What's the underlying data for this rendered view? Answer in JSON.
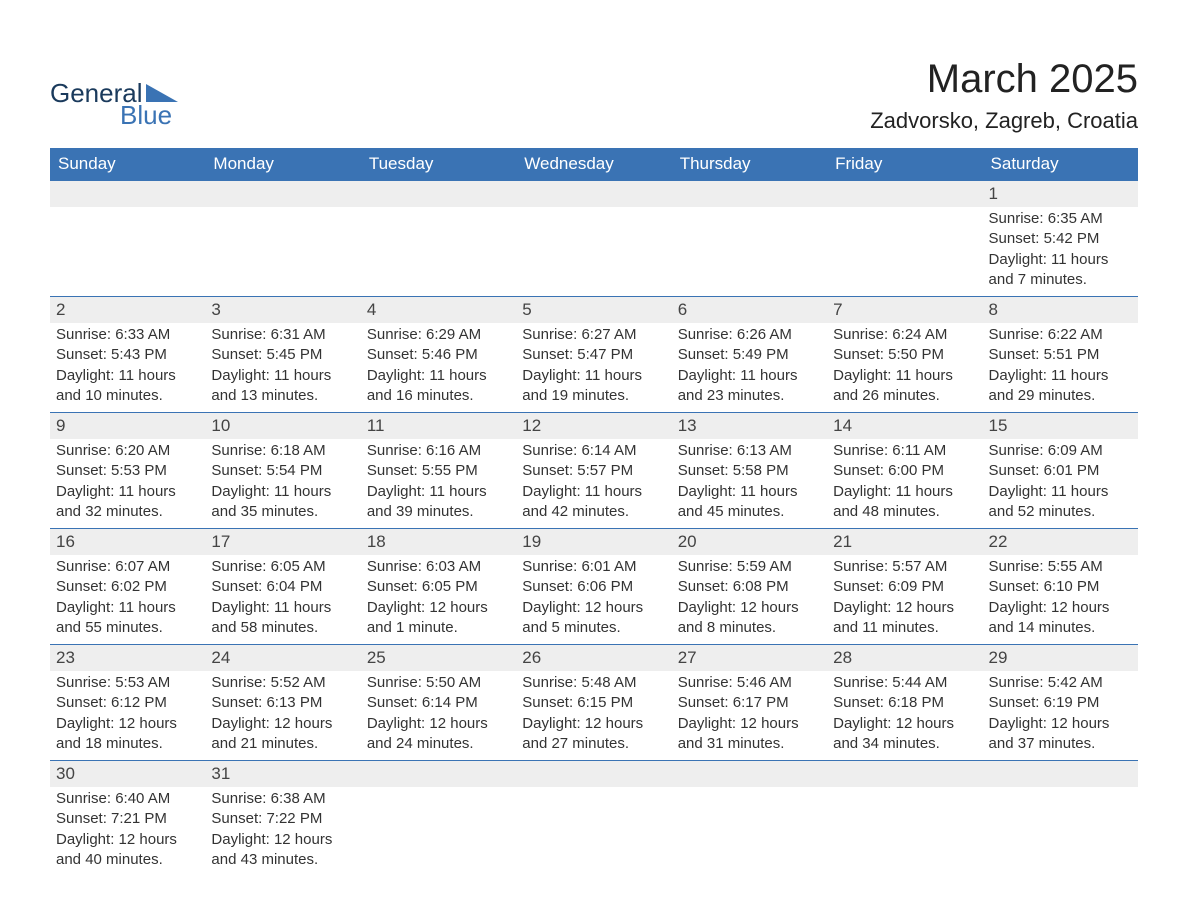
{
  "header": {
    "brand_word1": "General",
    "brand_word2": "Blue",
    "month_title": "March 2025",
    "location": "Zadvorsko, Zagreb, Croatia"
  },
  "colors": {
    "header_bg": "#3a73b4",
    "header_text": "#ffffff",
    "daynum_bg": "#eeeeee",
    "row_border": "#3a73b4",
    "body_text": "#333333",
    "brand_dark": "#1a3a5c",
    "brand_blue": "#3a73b4"
  },
  "weekdays": [
    "Sunday",
    "Monday",
    "Tuesday",
    "Wednesday",
    "Thursday",
    "Friday",
    "Saturday"
  ],
  "weeks": [
    [
      null,
      null,
      null,
      null,
      null,
      null,
      {
        "day": "1",
        "sunrise": "Sunrise: 6:35 AM",
        "sunset": "Sunset: 5:42 PM",
        "daylight": "Daylight: 11 hours and 7 minutes."
      }
    ],
    [
      {
        "day": "2",
        "sunrise": "Sunrise: 6:33 AM",
        "sunset": "Sunset: 5:43 PM",
        "daylight": "Daylight: 11 hours and 10 minutes."
      },
      {
        "day": "3",
        "sunrise": "Sunrise: 6:31 AM",
        "sunset": "Sunset: 5:45 PM",
        "daylight": "Daylight: 11 hours and 13 minutes."
      },
      {
        "day": "4",
        "sunrise": "Sunrise: 6:29 AM",
        "sunset": "Sunset: 5:46 PM",
        "daylight": "Daylight: 11 hours and 16 minutes."
      },
      {
        "day": "5",
        "sunrise": "Sunrise: 6:27 AM",
        "sunset": "Sunset: 5:47 PM",
        "daylight": "Daylight: 11 hours and 19 minutes."
      },
      {
        "day": "6",
        "sunrise": "Sunrise: 6:26 AM",
        "sunset": "Sunset: 5:49 PM",
        "daylight": "Daylight: 11 hours and 23 minutes."
      },
      {
        "day": "7",
        "sunrise": "Sunrise: 6:24 AM",
        "sunset": "Sunset: 5:50 PM",
        "daylight": "Daylight: 11 hours and 26 minutes."
      },
      {
        "day": "8",
        "sunrise": "Sunrise: 6:22 AM",
        "sunset": "Sunset: 5:51 PM",
        "daylight": "Daylight: 11 hours and 29 minutes."
      }
    ],
    [
      {
        "day": "9",
        "sunrise": "Sunrise: 6:20 AM",
        "sunset": "Sunset: 5:53 PM",
        "daylight": "Daylight: 11 hours and 32 minutes."
      },
      {
        "day": "10",
        "sunrise": "Sunrise: 6:18 AM",
        "sunset": "Sunset: 5:54 PM",
        "daylight": "Daylight: 11 hours and 35 minutes."
      },
      {
        "day": "11",
        "sunrise": "Sunrise: 6:16 AM",
        "sunset": "Sunset: 5:55 PM",
        "daylight": "Daylight: 11 hours and 39 minutes."
      },
      {
        "day": "12",
        "sunrise": "Sunrise: 6:14 AM",
        "sunset": "Sunset: 5:57 PM",
        "daylight": "Daylight: 11 hours and 42 minutes."
      },
      {
        "day": "13",
        "sunrise": "Sunrise: 6:13 AM",
        "sunset": "Sunset: 5:58 PM",
        "daylight": "Daylight: 11 hours and 45 minutes."
      },
      {
        "day": "14",
        "sunrise": "Sunrise: 6:11 AM",
        "sunset": "Sunset: 6:00 PM",
        "daylight": "Daylight: 11 hours and 48 minutes."
      },
      {
        "day": "15",
        "sunrise": "Sunrise: 6:09 AM",
        "sunset": "Sunset: 6:01 PM",
        "daylight": "Daylight: 11 hours and 52 minutes."
      }
    ],
    [
      {
        "day": "16",
        "sunrise": "Sunrise: 6:07 AM",
        "sunset": "Sunset: 6:02 PM",
        "daylight": "Daylight: 11 hours and 55 minutes."
      },
      {
        "day": "17",
        "sunrise": "Sunrise: 6:05 AM",
        "sunset": "Sunset: 6:04 PM",
        "daylight": "Daylight: 11 hours and 58 minutes."
      },
      {
        "day": "18",
        "sunrise": "Sunrise: 6:03 AM",
        "sunset": "Sunset: 6:05 PM",
        "daylight": "Daylight: 12 hours and 1 minute."
      },
      {
        "day": "19",
        "sunrise": "Sunrise: 6:01 AM",
        "sunset": "Sunset: 6:06 PM",
        "daylight": "Daylight: 12 hours and 5 minutes."
      },
      {
        "day": "20",
        "sunrise": "Sunrise: 5:59 AM",
        "sunset": "Sunset: 6:08 PM",
        "daylight": "Daylight: 12 hours and 8 minutes."
      },
      {
        "day": "21",
        "sunrise": "Sunrise: 5:57 AM",
        "sunset": "Sunset: 6:09 PM",
        "daylight": "Daylight: 12 hours and 11 minutes."
      },
      {
        "day": "22",
        "sunrise": "Sunrise: 5:55 AM",
        "sunset": "Sunset: 6:10 PM",
        "daylight": "Daylight: 12 hours and 14 minutes."
      }
    ],
    [
      {
        "day": "23",
        "sunrise": "Sunrise: 5:53 AM",
        "sunset": "Sunset: 6:12 PM",
        "daylight": "Daylight: 12 hours and 18 minutes."
      },
      {
        "day": "24",
        "sunrise": "Sunrise: 5:52 AM",
        "sunset": "Sunset: 6:13 PM",
        "daylight": "Daylight: 12 hours and 21 minutes."
      },
      {
        "day": "25",
        "sunrise": "Sunrise: 5:50 AM",
        "sunset": "Sunset: 6:14 PM",
        "daylight": "Daylight: 12 hours and 24 minutes."
      },
      {
        "day": "26",
        "sunrise": "Sunrise: 5:48 AM",
        "sunset": "Sunset: 6:15 PM",
        "daylight": "Daylight: 12 hours and 27 minutes."
      },
      {
        "day": "27",
        "sunrise": "Sunrise: 5:46 AM",
        "sunset": "Sunset: 6:17 PM",
        "daylight": "Daylight: 12 hours and 31 minutes."
      },
      {
        "day": "28",
        "sunrise": "Sunrise: 5:44 AM",
        "sunset": "Sunset: 6:18 PM",
        "daylight": "Daylight: 12 hours and 34 minutes."
      },
      {
        "day": "29",
        "sunrise": "Sunrise: 5:42 AM",
        "sunset": "Sunset: 6:19 PM",
        "daylight": "Daylight: 12 hours and 37 minutes."
      }
    ],
    [
      {
        "day": "30",
        "sunrise": "Sunrise: 6:40 AM",
        "sunset": "Sunset: 7:21 PM",
        "daylight": "Daylight: 12 hours and 40 minutes."
      },
      {
        "day": "31",
        "sunrise": "Sunrise: 6:38 AM",
        "sunset": "Sunset: 7:22 PM",
        "daylight": "Daylight: 12 hours and 43 minutes."
      },
      null,
      null,
      null,
      null,
      null
    ]
  ]
}
